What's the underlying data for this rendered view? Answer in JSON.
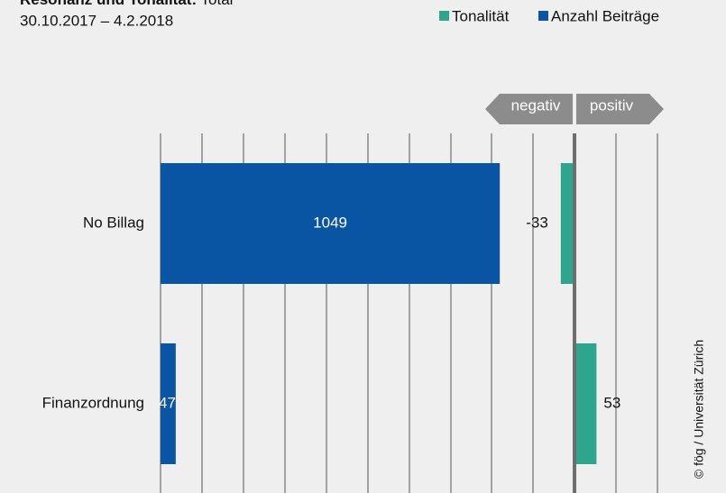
{
  "chart_data": {
    "type": "bar",
    "title": "Resonanz und Tonalität:",
    "title_note": "Total",
    "subtitle": "30.10.2017 – 4.2.2018",
    "direction_labels": {
      "negative": "negativ",
      "positive": "positiv"
    },
    "credit": "© fög / Universität Zürich",
    "categories": [
      "No Billag",
      "Finanzordnung"
    ],
    "series": [
      {
        "name": "Tonalität",
        "color": "#2ea58c",
        "values": [
          -33,
          53
        ],
        "axis": "x2"
      },
      {
        "name": "Anzahl Beiträge",
        "color": "#0a55a3",
        "values": [
          1049,
          47
        ]
      }
    ],
    "xlim": [
      0,
      1280
    ],
    "x2lim": [
      -100,
      100
    ]
  }
}
